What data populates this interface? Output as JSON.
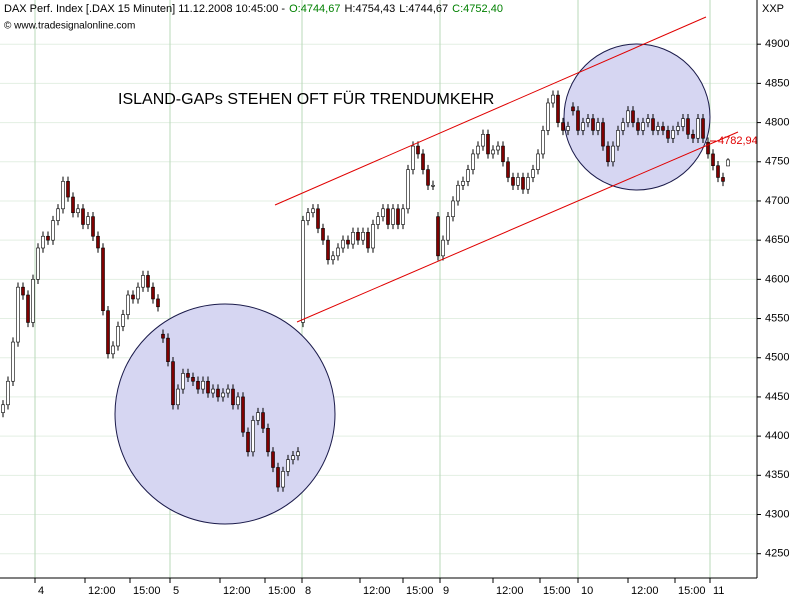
{
  "header": {
    "title": "DAX Perf. Index [.DAX  15 Minuten] 11.12.2008 10:45:00 -",
    "open": "O:4744,67",
    "high": "H:4754,43",
    "low": "L:4744,67",
    "close": "C:4752,40",
    "copyright": "© www.tradesignalonline.com",
    "symbol": "XXP"
  },
  "annotations": {
    "text": "ISLAND-GAPs STEHEN OFT FÜR TRENDUMKEHR",
    "line_label": "4782,94"
  },
  "chart_data": {
    "type": "candlestick",
    "up_color": "#ffffff",
    "down_color": "#800000",
    "ylim": [
      4219,
      4950
    ],
    "yticks": [
      4250,
      4300,
      4350,
      4400,
      4450,
      4500,
      4550,
      4600,
      4650,
      4700,
      4750,
      4800,
      4850,
      4900
    ],
    "xlim": [
      -0.6,
      150.8
    ],
    "xticks": [
      {
        "value": 6.4,
        "label": "4"
      },
      {
        "value": 16.4,
        "label": "12:00"
      },
      {
        "value": 25.4,
        "label": "15:00"
      },
      {
        "value": 33.4,
        "label": "5"
      },
      {
        "value": 43.4,
        "label": "12:00"
      },
      {
        "value": 52.4,
        "label": "15:00"
      },
      {
        "value": 59.8,
        "label": "8"
      },
      {
        "value": 71.4,
        "label": "12:00"
      },
      {
        "value": 80,
        "label": "15:00"
      },
      {
        "value": 87.4,
        "label": "9"
      },
      {
        "value": 98,
        "label": "12:00"
      },
      {
        "value": 107.4,
        "label": "15:00"
      },
      {
        "value": 115,
        "label": "10"
      },
      {
        "value": 125,
        "label": "12:00"
      },
      {
        "value": 134.4,
        "label": "15:00"
      },
      {
        "value": 141.4,
        "label": "11"
      }
    ],
    "open": [
      4430,
      4440,
      4470,
      4520,
      4590,
      4580,
      4545,
      4600,
      4640,
      4655,
      4650,
      4675,
      4690,
      4725,
      4705,
      4685,
      4690,
      4670,
      4680,
      4655,
      4640,
      4560,
      4505,
      4515,
      4540,
      4555,
      4580,
      4575,
      4590,
      4605,
      4590,
      4575,
      4530,
      4525,
      4495,
      4440,
      4460,
      4480,
      4475,
      4470,
      4460,
      4470,
      4455,
      4460,
      4450,
      4455,
      4460,
      4440,
      4450,
      4405,
      4380,
      4420,
      4430,
      4410,
      4380,
      4360,
      4335,
      4355,
      4370,
      4375,
      4545,
      4675,
      4685,
      4690,
      4665,
      4650,
      4625,
      4630,
      4640,
      4650,
      4645,
      4660,
      4650,
      4660,
      4640,
      4670,
      4680,
      4690,
      4670,
      4690,
      4670,
      4690,
      4740,
      4770,
      4760,
      4740,
      4720,
      4680,
      4630,
      4650,
      4680,
      4700,
      4720,
      4725,
      4740,
      4760,
      4770,
      4785,
      4760,
      4765,
      4770,
      4750,
      4730,
      4720,
      4730,
      4715,
      4730,
      4740,
      4760,
      4790,
      4825,
      4835,
      4800,
      4790,
      4820,
      4815,
      4790,
      4800,
      4805,
      4790,
      4800,
      4770,
      4750,
      4770,
      4790,
      4800,
      4815,
      4800,
      4790,
      4800,
      4805,
      4790,
      4795,
      4790,
      4780,
      4790,
      4795,
      4805,
      4785,
      4780,
      4805,
      4775,
      4760,
      4745,
      4730,
      4744.67
    ],
    "high": [
      4446,
      4476,
      4526,
      4596,
      4596,
      4586,
      4606,
      4646,
      4661,
      4661,
      4681,
      4696,
      4731,
      4731,
      4711,
      4696,
      4696,
      4686,
      4686,
      4661,
      4646,
      4566,
      4521,
      4546,
      4561,
      4586,
      4586,
      4596,
      4611,
      4611,
      4596,
      4581,
      4536,
      4531,
      4501,
      4466,
      4486,
      4486,
      4481,
      4476,
      4476,
      4476,
      4466,
      4466,
      4461,
      4466,
      4466,
      4456,
      4456,
      4411,
      4426,
      4436,
      4436,
      4416,
      4386,
      4366,
      4361,
      4376,
      4381,
      4386,
      4681,
      4691,
      4696,
      4696,
      4671,
      4656,
      4636,
      4646,
      4656,
      4656,
      4666,
      4666,
      4666,
      4666,
      4676,
      4686,
      4696,
      4696,
      4696,
      4696,
      4696,
      4746,
      4776,
      4776,
      4766,
      4746,
      4726,
      4686,
      4656,
      4686,
      4706,
      4726,
      4731,
      4746,
      4766,
      4776,
      4791,
      4791,
      4771,
      4776,
      4776,
      4756,
      4736,
      4736,
      4736,
      4736,
      4746,
      4766,
      4796,
      4831,
      4841,
      4841,
      4806,
      4801,
      4826,
      4821,
      4806,
      4811,
      4811,
      4806,
      4806,
      4776,
      4776,
      4796,
      4806,
      4821,
      4821,
      4806,
      4806,
      4811,
      4811,
      4801,
      4801,
      4796,
      4796,
      4801,
      4811,
      4811,
      4791,
      4811,
      4811,
      4781,
      4766,
      4751,
      4736,
      4754.43
    ],
    "low": [
      4424,
      4434,
      4464,
      4514,
      4574,
      4539,
      4539,
      4594,
      4634,
      4644,
      4644,
      4669,
      4684,
      4699,
      4679,
      4679,
      4664,
      4664,
      4649,
      4634,
      4554,
      4499,
      4499,
      4509,
      4534,
      4549,
      4569,
      4569,
      4584,
      4584,
      4569,
      4559,
      4519,
      4489,
      4434,
      4434,
      4454,
      4469,
      4464,
      4454,
      4454,
      4449,
      4449,
      4444,
      4444,
      4449,
      4434,
      4434,
      4399,
      4374,
      4374,
      4414,
      4404,
      4374,
      4354,
      4329,
      4329,
      4349,
      4364,
      4369,
      4539,
      4669,
      4679,
      4659,
      4644,
      4619,
      4619,
      4624,
      4634,
      4639,
      4639,
      4644,
      4644,
      4634,
      4634,
      4664,
      4674,
      4664,
      4664,
      4664,
      4664,
      4684,
      4734,
      4754,
      4734,
      4714,
      4714,
      4624,
      4624,
      4644,
      4674,
      4694,
      4714,
      4719,
      4734,
      4754,
      4764,
      4754,
      4754,
      4759,
      4744,
      4724,
      4714,
      4714,
      4709,
      4709,
      4724,
      4734,
      4754,
      4784,
      4819,
      4794,
      4784,
      4784,
      4809,
      4784,
      4784,
      4794,
      4784,
      4784,
      4764,
      4744,
      4744,
      4764,
      4784,
      4794,
      4794,
      4784,
      4784,
      4794,
      4784,
      4784,
      4784,
      4774,
      4774,
      4784,
      4789,
      4779,
      4774,
      4774,
      4774,
      4754,
      4739,
      4724,
      4719,
      4744.67
    ],
    "close": [
      4440,
      4470,
      4520,
      4590,
      4580,
      4545,
      4600,
      4640,
      4655,
      4650,
      4675,
      4690,
      4725,
      4705,
      4685,
      4690,
      4670,
      4680,
      4655,
      4640,
      4560,
      4505,
      4515,
      4540,
      4555,
      4580,
      4575,
      4590,
      4605,
      4590,
      4575,
      4565,
      4525,
      4495,
      4440,
      4460,
      4480,
      4475,
      4470,
      4460,
      4470,
      4455,
      4460,
      4450,
      4455,
      4460,
      4440,
      4450,
      4405,
      4380,
      4420,
      4430,
      4410,
      4380,
      4360,
      4335,
      4355,
      4370,
      4375,
      4380,
      4675,
      4685,
      4690,
      4665,
      4650,
      4625,
      4630,
      4640,
      4650,
      4645,
      4660,
      4650,
      4660,
      4640,
      4670,
      4680,
      4690,
      4670,
      4690,
      4670,
      4690,
      4740,
      4770,
      4760,
      4740,
      4720,
      4720,
      4630,
      4650,
      4680,
      4700,
      4720,
      4725,
      4740,
      4760,
      4770,
      4785,
      4760,
      4765,
      4770,
      4750,
      4730,
      4720,
      4730,
      4715,
      4730,
      4740,
      4760,
      4790,
      4825,
      4835,
      4800,
      4790,
      4795,
      4815,
      4790,
      4800,
      4805,
      4790,
      4800,
      4770,
      4750,
      4770,
      4790,
      4800,
      4815,
      4800,
      4790,
      4800,
      4805,
      4790,
      4795,
      4790,
      4780,
      4790,
      4795,
      4805,
      4785,
      4780,
      4805,
      4780,
      4760,
      4745,
      4730,
      4725,
      4752.4
    ]
  }
}
